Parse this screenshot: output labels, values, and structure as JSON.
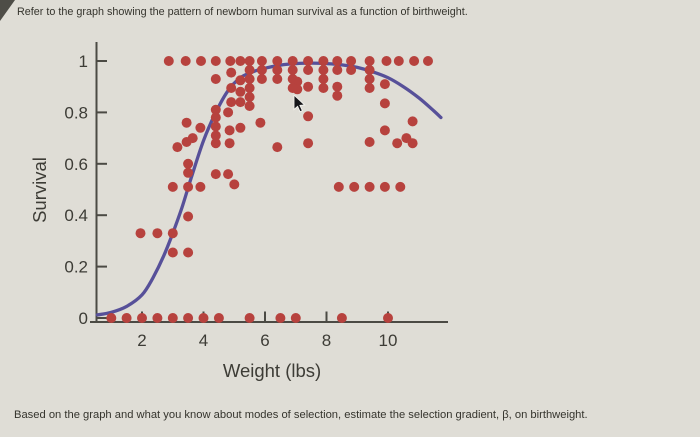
{
  "header": {
    "instruction": "Refer to the graph showing the pattern of newborn human survival as a function of birthweight."
  },
  "footer": {
    "question": "Based on the graph and what you know about modes of selection, estimate the selection gradient, β, on birthweight."
  },
  "chart_data": {
    "type": "scatter",
    "title": "",
    "xlabel": "Weight (lbs)",
    "ylabel": "Survival",
    "x_ticks": [
      2,
      4,
      6,
      8,
      10
    ],
    "y_ticks": [
      0,
      0.2,
      0.4,
      0.6,
      0.8,
      1
    ],
    "xlim": [
      0.5,
      11.9
    ],
    "ylim": [
      0,
      1.09
    ],
    "grid": false,
    "legend": "none",
    "point_color": "#b7423e",
    "curve_color": "#575099",
    "axis_color": "#4b4a44",
    "points": [
      [
        1,
        0
      ],
      [
        1.5,
        0
      ],
      [
        2,
        0
      ],
      [
        2.5,
        0
      ],
      [
        3,
        0
      ],
      [
        3.5,
        0
      ],
      [
        4,
        0
      ],
      [
        4.5,
        0
      ],
      [
        5.5,
        0
      ],
      [
        6.5,
        0
      ],
      [
        7,
        0
      ],
      [
        8.5,
        0
      ],
      [
        10,
        0
      ],
      [
        3,
        0.255
      ],
      [
        3.5,
        0.255
      ],
      [
        1.95,
        0.33
      ],
      [
        2.5,
        0.33
      ],
      [
        3,
        0.33
      ],
      [
        3.5,
        0.395
      ],
      [
        3,
        0.51
      ],
      [
        3.5,
        0.51
      ],
      [
        3.9,
        0.51
      ],
      [
        5,
        0.52
      ],
      [
        4.4,
        0.56
      ],
      [
        4.8,
        0.56
      ],
      [
        3.5,
        0.565
      ],
      [
        3.5,
        0.6
      ],
      [
        8.4,
        0.51
      ],
      [
        8.9,
        0.51
      ],
      [
        9.4,
        0.51
      ],
      [
        9.9,
        0.51
      ],
      [
        10.4,
        0.51
      ],
      [
        3.15,
        0.665
      ],
      [
        3.45,
        0.685
      ],
      [
        3.65,
        0.7
      ],
      [
        4.4,
        0.68
      ],
      [
        4.85,
        0.68
      ],
      [
        6.4,
        0.665
      ],
      [
        7.4,
        0.68
      ],
      [
        9.4,
        0.685
      ],
      [
        10.3,
        0.68
      ],
      [
        10.8,
        0.68
      ],
      [
        10.6,
        0.7
      ],
      [
        3.45,
        0.76
      ],
      [
        3.9,
        0.74
      ],
      [
        4.4,
        0.71
      ],
      [
        4.4,
        0.745
      ],
      [
        4.4,
        0.78
      ],
      [
        4.4,
        0.81
      ],
      [
        4.85,
        0.73
      ],
      [
        5.2,
        0.74
      ],
      [
        4.8,
        0.8
      ],
      [
        5.85,
        0.76
      ],
      [
        7.4,
        0.785
      ],
      [
        9.9,
        0.73
      ],
      [
        10.8,
        0.765
      ],
      [
        9.9,
        0.835
      ],
      [
        4.4,
        0.93
      ],
      [
        4.9,
        0.955
      ],
      [
        4.9,
        0.895
      ],
      [
        4.9,
        0.84
      ],
      [
        5.2,
        0.925
      ],
      [
        5.2,
        0.88
      ],
      [
        5.2,
        0.84
      ],
      [
        7.05,
        0.92
      ],
      [
        7.05,
        0.89
      ],
      [
        9.9,
        0.91
      ],
      [
        2.87,
        1
      ],
      [
        3.42,
        1
      ],
      [
        3.92,
        1
      ],
      [
        4.4,
        1
      ],
      [
        4.87,
        1
      ],
      [
        5.2,
        1
      ],
      [
        9.95,
        1
      ],
      [
        10.35,
        1
      ],
      [
        10.85,
        1
      ],
      [
        11.3,
        1
      ],
      [
        5.5,
        1
      ],
      [
        5.5,
        0.965
      ],
      [
        5.5,
        0.93
      ],
      [
        5.5,
        0.895
      ],
      [
        5.5,
        0.86
      ],
      [
        5.5,
        0.825
      ],
      [
        5.9,
        1
      ],
      [
        5.9,
        0.965
      ],
      [
        5.9,
        0.93
      ],
      [
        6.4,
        1
      ],
      [
        6.4,
        0.965
      ],
      [
        6.4,
        0.93
      ],
      [
        6.9,
        1
      ],
      [
        6.9,
        0.965
      ],
      [
        6.9,
        0.93
      ],
      [
        6.9,
        0.895
      ],
      [
        7.4,
        1
      ],
      [
        7.4,
        0.965
      ],
      [
        7.4,
        0.9
      ],
      [
        7.9,
        1
      ],
      [
        7.9,
        0.965
      ],
      [
        7.9,
        0.93
      ],
      [
        7.9,
        0.895
      ],
      [
        8.35,
        1
      ],
      [
        8.35,
        0.965
      ],
      [
        8.35,
        0.9
      ],
      [
        8.35,
        0.865
      ],
      [
        8.8,
        1
      ],
      [
        8.8,
        0.965
      ],
      [
        9.4,
        1
      ],
      [
        9.4,
        0.965
      ],
      [
        9.4,
        0.93
      ],
      [
        9.4,
        0.895
      ]
    ],
    "fitted_curve": [
      [
        0.55,
        0.012
      ],
      [
        1,
        0.022
      ],
      [
        1.5,
        0.045
      ],
      [
        2,
        0.09
      ],
      [
        2.35,
        0.155
      ],
      [
        2.7,
        0.24
      ],
      [
        3,
        0.33
      ],
      [
        3.3,
        0.43
      ],
      [
        3.6,
        0.545
      ],
      [
        4,
        0.69
      ],
      [
        4.4,
        0.8
      ],
      [
        4.8,
        0.885
      ],
      [
        5.2,
        0.935
      ],
      [
        5.6,
        0.958
      ],
      [
        6,
        0.972
      ],
      [
        6.5,
        0.984
      ],
      [
        7,
        0.99
      ],
      [
        7.5,
        0.992
      ],
      [
        8,
        0.99
      ],
      [
        8.5,
        0.985
      ],
      [
        9,
        0.975
      ],
      [
        9.5,
        0.958
      ],
      [
        10,
        0.935
      ],
      [
        10.5,
        0.9
      ],
      [
        11,
        0.857
      ],
      [
        11.5,
        0.805
      ],
      [
        11.72,
        0.78
      ]
    ]
  }
}
